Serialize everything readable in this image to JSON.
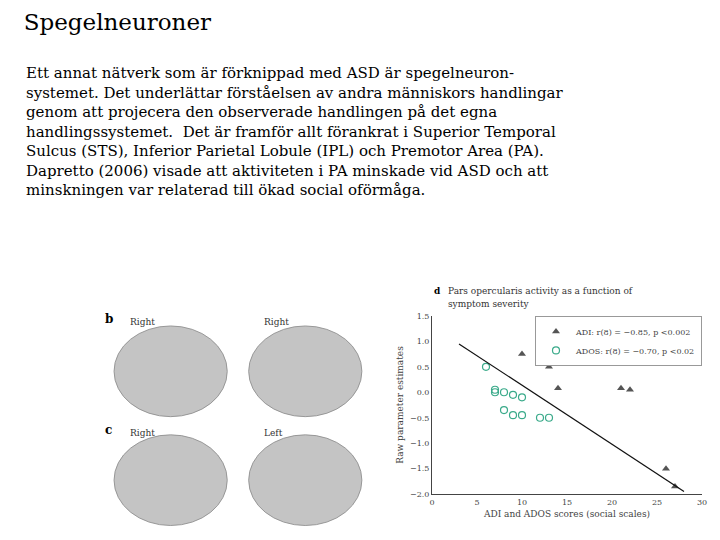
{
  "chart_data": {
    "type": "scatter",
    "title": "Spegelneuroner",
    "subtitle": "Ett annat nätverk som är förknippad med ASD är spegelneuron-\nsystemet. Det underlättar förståelsen av andra människors handlingar\ngenom att projecera den observerade handlingen på det egna\nhandlingssystemet.  Det är framför allt förankrat i Superior Temporal\nSulcus (STS), Inferior Parietal Lobule (IPL) och Premotor Area (PA).\nDapretto (2006) visade att aktiviteten i PA minskade vid ASD och att\nminskningen var relaterad till ökad social oförmåga.",
    "annotations": [
      "d",
      "Pars opercularis activity as a function of",
      "symptom severity",
      "b",
      "Right",
      "Right",
      "c",
      "Right",
      "Left"
    ],
    "xlabel": "ADI and ADOS scores (social scales)",
    "ylabel": "Raw parameter estimates",
    "xlim": [
      0,
      30
    ],
    "ylim": [
      -2.0,
      1.5
    ],
    "xticks": [
      0,
      5,
      10,
      15,
      20,
      25,
      30
    ],
    "yticks": [
      {
        "value": -2.0,
        "label": "−2.0"
      },
      {
        "value": -1.5,
        "label": "−1.5"
      },
      {
        "value": -1.0,
        "label": "−1.0"
      },
      {
        "value": -0.5,
        "label": "−0.5"
      },
      {
        "value": 0.0,
        "label": "0.0"
      },
      {
        "value": 0.5,
        "label": "0.5"
      },
      {
        "value": 1.0,
        "label": "1.0"
      },
      {
        "value": 1.5,
        "label": "1.5"
      }
    ],
    "grid": false,
    "legend": "upper right",
    "series": [
      {
        "name": "ADI: r(8) = −0.85, p <0.002",
        "type": "scatter",
        "color": "#555555",
        "marker": "triangle-up",
        "x": [
          10,
          13,
          14,
          21,
          22,
          26,
          27
        ],
        "values": [
          0.75,
          0.5,
          0.08,
          0.08,
          0.05,
          -1.5,
          -1.85
        ]
      },
      {
        "name": "ADOS: r(8) = −0.70, p <0.02",
        "type": "scatter",
        "color": "#3aaa8a",
        "marker": "circle-open",
        "x": [
          6,
          7,
          7,
          8,
          8,
          9,
          9,
          10,
          10,
          12,
          13
        ],
        "values": [
          0.5,
          0.05,
          0.0,
          0.0,
          -0.35,
          -0.05,
          -0.45,
          -0.45,
          -0.1,
          -0.5,
          -0.5
        ]
      },
      {
        "type": "line",
        "color": "#111111",
        "line_style": "solid",
        "x": [
          3,
          28
        ],
        "values": [
          0.95,
          -1.95
        ]
      }
    ]
  }
}
